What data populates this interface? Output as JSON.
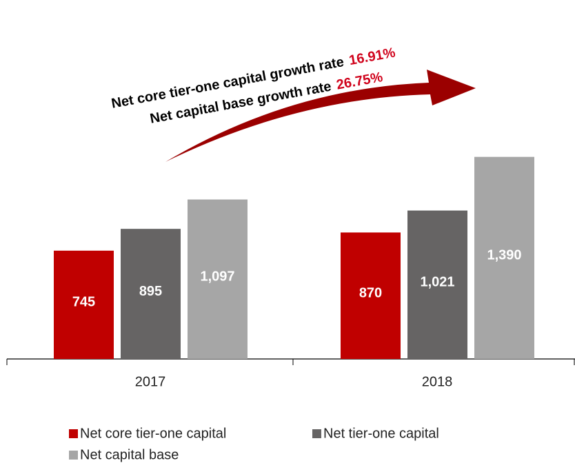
{
  "chart_data": {
    "type": "bar",
    "categories": [
      "2017",
      "2018"
    ],
    "series": [
      {
        "name": "Net core tier-one capital",
        "color": "#c00000",
        "values": [
          745,
          870
        ],
        "value_labels": [
          "745",
          "870"
        ]
      },
      {
        "name": "Net tier-one capital",
        "color": "#666464",
        "values": [
          895,
          1021
        ],
        "value_labels": [
          "895",
          "1,021"
        ]
      },
      {
        "name": "Net capital base",
        "color": "#a6a6a6",
        "values": [
          1097,
          1390
        ],
        "value_labels": [
          "1,097",
          "1,390"
        ]
      }
    ],
    "annotations": [
      {
        "text": "Net core tier-one capital growth rate",
        "value": "16.91%"
      },
      {
        "text": "Net capital base growth rate",
        "value": "26.75%"
      }
    ]
  }
}
